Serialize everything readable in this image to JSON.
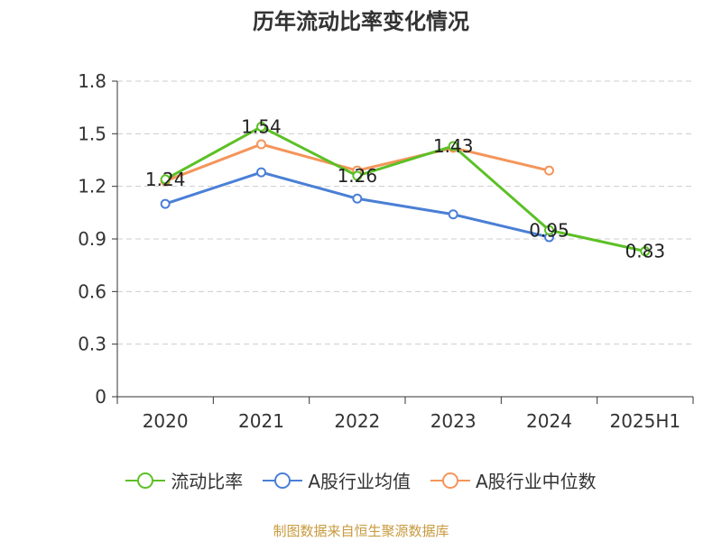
{
  "chart_data": {
    "type": "line",
    "title": "历年流动比率变化情况",
    "categories": [
      "2020",
      "2021",
      "2022",
      "2023",
      "2024",
      "2025H1"
    ],
    "ylim": [
      0,
      1.8
    ],
    "yticks": [
      "0",
      "0.3",
      "0.6",
      "0.9",
      "1.2",
      "1.5",
      "1.8"
    ],
    "grid": true,
    "legend_position": "bottom",
    "series": [
      {
        "name": "流动比率",
        "color": "#5cc026",
        "values": [
          1.24,
          1.54,
          1.26,
          1.43,
          0.95,
          0.83
        ],
        "labels": [
          "1.24",
          "1.54",
          "1.26",
          "1.43",
          "0.95",
          "0.83"
        ]
      },
      {
        "name": "A股行业均值",
        "color": "#4a7fd6",
        "values": [
          1.1,
          1.28,
          1.13,
          1.04,
          0.91,
          null
        ]
      },
      {
        "name": "A股行业中位数",
        "color": "#f4955a",
        "values": [
          1.23,
          1.44,
          1.29,
          1.42,
          1.29,
          null
        ]
      }
    ]
  },
  "source": "制图数据来自恒生聚源数据库"
}
